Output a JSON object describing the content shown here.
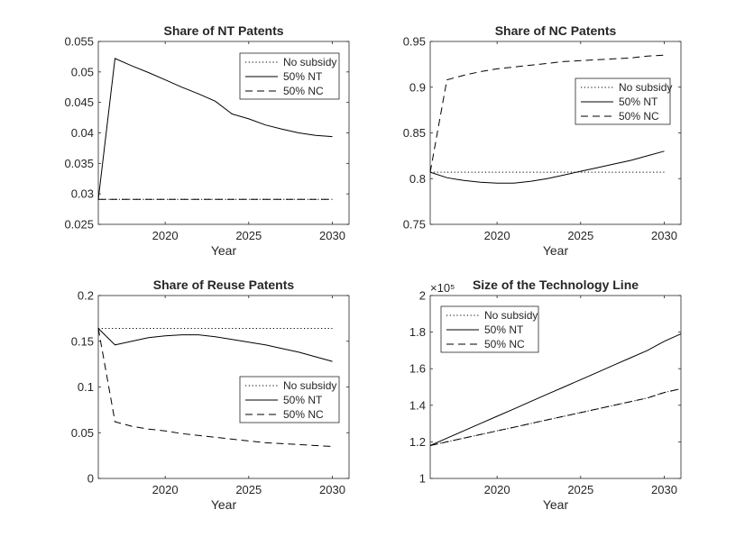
{
  "chart_data": [
    {
      "type": "line",
      "title": "Share of NT Patents",
      "xlabel": "Year",
      "ylabel": "",
      "xlim": [
        2016,
        2031
      ],
      "ylim": [
        0.025,
        0.055
      ],
      "xticks": [
        2020,
        2025,
        2030
      ],
      "xtick_labels": [
        "2020",
        "2025",
        "2030"
      ],
      "yticks": [
        0.025,
        0.03,
        0.035,
        0.04,
        0.045,
        0.05,
        0.055
      ],
      "ytick_labels": [
        "0.025",
        "0.03",
        "0.035",
        "0.04",
        "0.045",
        "0.05",
        "0.055"
      ],
      "legend_position": "top-right",
      "x": [
        2016,
        2017,
        2018,
        2019,
        2020,
        2021,
        2022,
        2023,
        2024,
        2025,
        2026,
        2027,
        2028,
        2029,
        2030
      ],
      "series": [
        {
          "name": "No subsidy",
          "style": "dotted",
          "values": [
            0.0291,
            0.0291,
            0.0291,
            0.0291,
            0.0291,
            0.0291,
            0.0291,
            0.0291,
            0.0291,
            0.0291,
            0.0291,
            0.0291,
            0.0291,
            0.0291,
            0.0291
          ]
        },
        {
          "name": "50% NT",
          "style": "solid",
          "values": [
            0.0291,
            0.0522,
            0.051,
            0.0499,
            0.0487,
            0.0475,
            0.0464,
            0.0452,
            0.0431,
            0.0423,
            0.0413,
            0.0406,
            0.04,
            0.0396,
            0.0394
          ]
        },
        {
          "name": "50% NC",
          "style": "dashed",
          "values": [
            0.0291,
            0.0291,
            0.0291,
            0.0291,
            0.0291,
            0.0291,
            0.0291,
            0.0291,
            0.0291,
            0.0291,
            0.0291,
            0.0291,
            0.0291,
            0.0291,
            0.0291
          ]
        }
      ]
    },
    {
      "type": "line",
      "title": "Share of NC Patents",
      "xlabel": "Year",
      "ylabel": "",
      "xlim": [
        2016,
        2031
      ],
      "ylim": [
        0.75,
        0.95
      ],
      "xticks": [
        2020,
        2025,
        2030
      ],
      "xtick_labels": [
        "2020",
        "2025",
        "2030"
      ],
      "yticks": [
        0.75,
        0.8,
        0.85,
        0.9,
        0.95
      ],
      "ytick_labels": [
        "0.75",
        "0.8",
        "0.85",
        "0.9",
        "0.95"
      ],
      "legend_position": "right",
      "x": [
        2016,
        2017,
        2018,
        2019,
        2020,
        2021,
        2022,
        2023,
        2024,
        2025,
        2026,
        2027,
        2028,
        2029,
        2030
      ],
      "series": [
        {
          "name": "No subsidy",
          "style": "dotted",
          "values": [
            0.807,
            0.807,
            0.807,
            0.807,
            0.807,
            0.807,
            0.807,
            0.807,
            0.807,
            0.807,
            0.807,
            0.807,
            0.807,
            0.807,
            0.807
          ]
        },
        {
          "name": "50% NT",
          "style": "solid",
          "values": [
            0.807,
            0.801,
            0.798,
            0.796,
            0.795,
            0.795,
            0.797,
            0.8,
            0.804,
            0.808,
            0.812,
            0.816,
            0.82,
            0.825,
            0.83
          ]
        },
        {
          "name": "50% NC",
          "style": "dashed",
          "values": [
            0.807,
            0.908,
            0.913,
            0.917,
            0.92,
            0.922,
            0.924,
            0.926,
            0.928,
            0.929,
            0.93,
            0.931,
            0.932,
            0.934,
            0.935
          ]
        }
      ]
    },
    {
      "type": "line",
      "title": "Share of Reuse Patents",
      "xlabel": "Year",
      "ylabel": "",
      "xlim": [
        2016,
        2031
      ],
      "ylim": [
        0,
        0.2
      ],
      "xticks": [
        2020,
        2025,
        2030
      ],
      "xtick_labels": [
        "2020",
        "2025",
        "2030"
      ],
      "yticks": [
        0,
        0.05,
        0.1,
        0.15,
        0.2
      ],
      "ytick_labels": [
        "0",
        "0.05",
        "0.1",
        "0.15",
        "0.2"
      ],
      "legend_position": "bottom-right",
      "x": [
        2016,
        2017,
        2018,
        2019,
        2020,
        2021,
        2022,
        2023,
        2024,
        2025,
        2026,
        2027,
        2028,
        2029,
        2030
      ],
      "series": [
        {
          "name": "No subsidy",
          "style": "dotted",
          "values": [
            0.164,
            0.164,
            0.164,
            0.164,
            0.164,
            0.164,
            0.164,
            0.164,
            0.164,
            0.164,
            0.164,
            0.164,
            0.164,
            0.164,
            0.164
          ]
        },
        {
          "name": "50% NT",
          "style": "solid",
          "values": [
            0.164,
            0.146,
            0.15,
            0.154,
            0.156,
            0.157,
            0.157,
            0.155,
            0.152,
            0.149,
            0.146,
            0.142,
            0.138,
            0.133,
            0.128
          ]
        },
        {
          "name": "50% NC",
          "style": "dashed",
          "values": [
            0.164,
            0.062,
            0.057,
            0.054,
            0.052,
            0.049,
            0.047,
            0.045,
            0.043,
            0.041,
            0.039,
            0.038,
            0.037,
            0.036,
            0.035
          ]
        }
      ]
    },
    {
      "type": "line",
      "title": "Size of the Technology Line",
      "xlabel": "Year",
      "ylabel": "",
      "exponent_label": "×10⁵",
      "xlim": [
        2016,
        2031
      ],
      "ylim": [
        1,
        2
      ],
      "xticks": [
        2020,
        2025,
        2030
      ],
      "xtick_labels": [
        "2020",
        "2025",
        "2030"
      ],
      "yticks": [
        1,
        1.2,
        1.4,
        1.6,
        1.8,
        2
      ],
      "ytick_labels": [
        "1",
        "1.2",
        "1.4",
        "1.6",
        "1.8",
        "2"
      ],
      "legend_position": "top-left",
      "x": [
        2016,
        2017,
        2018,
        2019,
        2020,
        2021,
        2022,
        2023,
        2024,
        2025,
        2026,
        2027,
        2028,
        2029,
        2030,
        2031
      ],
      "series": [
        {
          "name": "No subsidy",
          "style": "dotted",
          "values": [
            1.18,
            1.2,
            1.22,
            1.24,
            1.26,
            1.28,
            1.3,
            1.32,
            1.34,
            1.36,
            1.38,
            1.4,
            1.42,
            1.44,
            1.47,
            1.49
          ]
        },
        {
          "name": "50% NT",
          "style": "solid",
          "values": [
            1.18,
            1.22,
            1.26,
            1.3,
            1.34,
            1.38,
            1.42,
            1.46,
            1.5,
            1.54,
            1.58,
            1.62,
            1.66,
            1.7,
            1.75,
            1.79
          ]
        },
        {
          "name": "50% NC",
          "style": "dashed",
          "values": [
            1.18,
            1.2,
            1.22,
            1.24,
            1.26,
            1.28,
            1.3,
            1.32,
            1.34,
            1.36,
            1.38,
            1.4,
            1.42,
            1.44,
            1.47,
            1.49
          ]
        }
      ]
    }
  ]
}
